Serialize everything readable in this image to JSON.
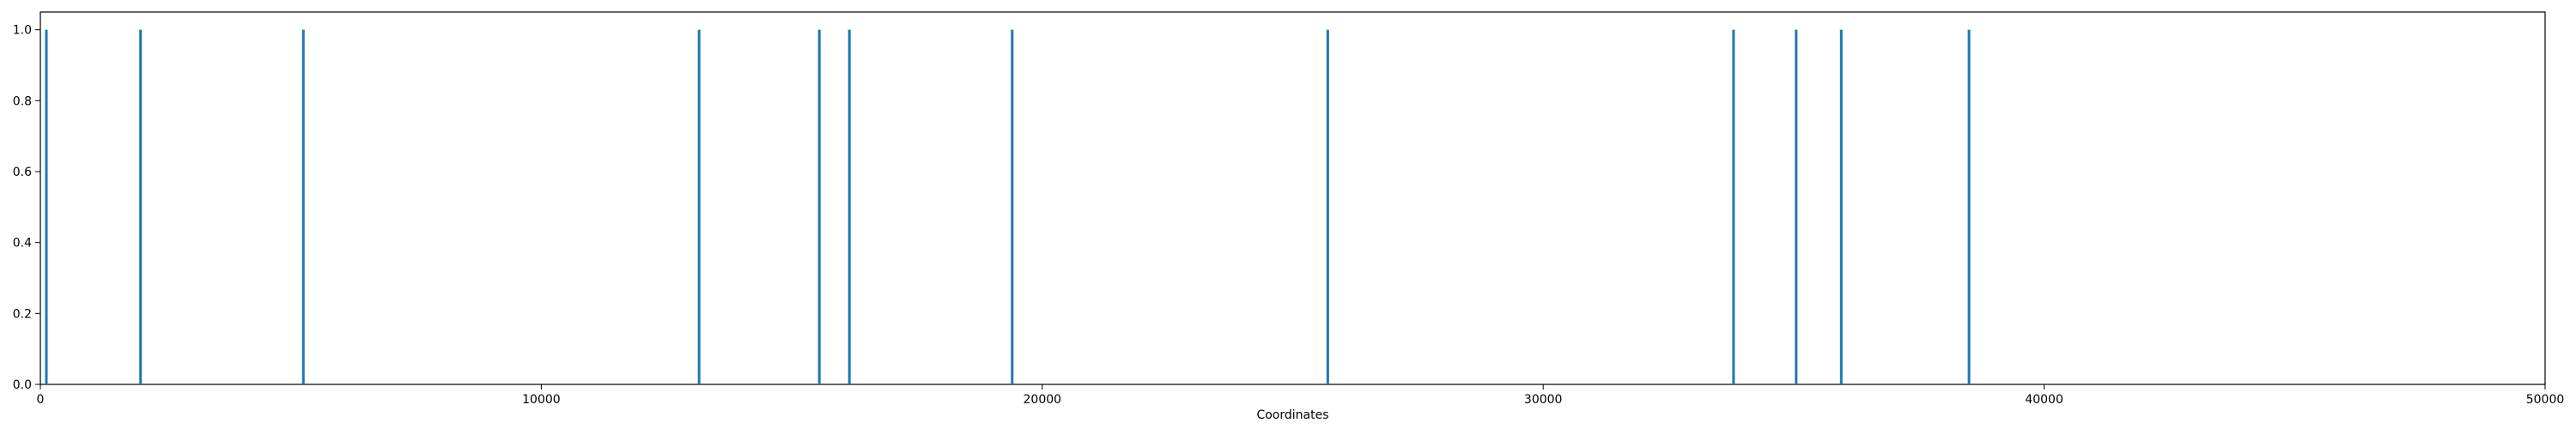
{
  "chart_data": {
    "type": "bar",
    "title": "",
    "xlabel": "Coordinates",
    "ylabel": "",
    "xlim": [
      0,
      50000
    ],
    "ylim": [
      0,
      1.05
    ],
    "x_ticks": [
      0,
      10000,
      20000,
      30000,
      40000,
      50000
    ],
    "x_tick_labels": [
      "0",
      "10000",
      "20000",
      "30000",
      "40000",
      "50000"
    ],
    "y_ticks": [
      0.0,
      0.2,
      0.4,
      0.6,
      0.8,
      1.0
    ],
    "y_tick_labels": [
      "0.0",
      "0.2",
      "0.4",
      "0.6",
      "0.8",
      "1.0"
    ],
    "grid": false,
    "series": [
      {
        "color": "#1f77b4",
        "x": [
          120,
          2000,
          5250,
          13150,
          15550,
          16150,
          19400,
          25700,
          33800,
          35050,
          35950,
          38500
        ],
        "values": [
          1,
          1,
          1,
          1,
          1,
          1,
          1,
          1,
          1,
          1,
          1,
          1
        ]
      }
    ]
  }
}
